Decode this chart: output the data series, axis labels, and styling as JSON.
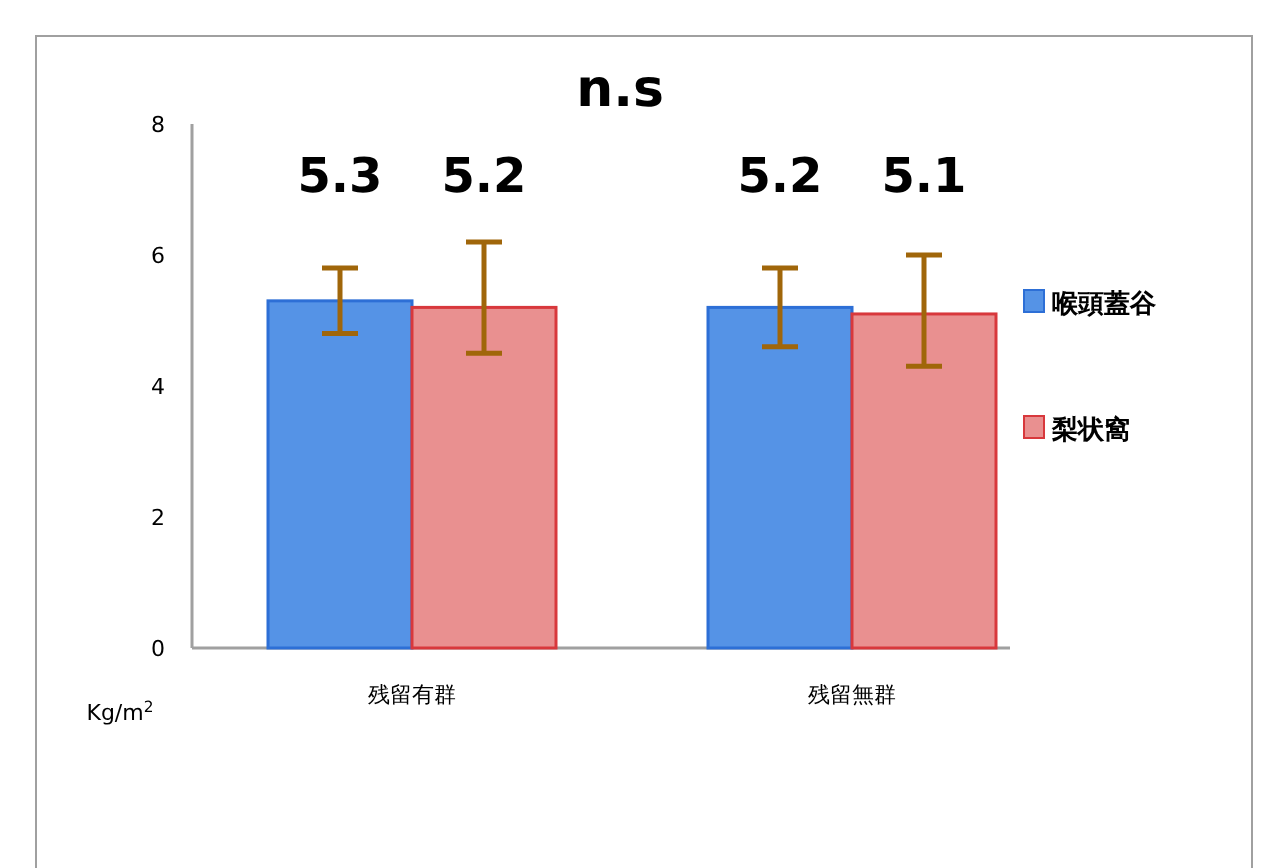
{
  "chart_data": {
    "type": "bar",
    "title": "n.s",
    "ylabel": "Kg/m$^{2}$",
    "categories": [
      "残留有群",
      "残留無群"
    ],
    "series": [
      {
        "name": "喉頭蓋谷",
        "color": "#5593e6",
        "values": [
          5.3,
          5.2
        ],
        "errors": [
          [
            4.8,
            5.8
          ],
          [
            4.6,
            5.8
          ]
        ]
      },
      {
        "name": "梨状窩",
        "color": "#e99090",
        "values": [
          5.2,
          5.1
        ],
        "errors": [
          [
            4.5,
            6.2
          ],
          [
            4.3,
            6.0
          ]
        ]
      }
    ],
    "ylim": [
      0,
      8
    ],
    "yticks": [
      0,
      2,
      4,
      6,
      8
    ],
    "data_labels": true,
    "legend": "right",
    "grid": false
  }
}
